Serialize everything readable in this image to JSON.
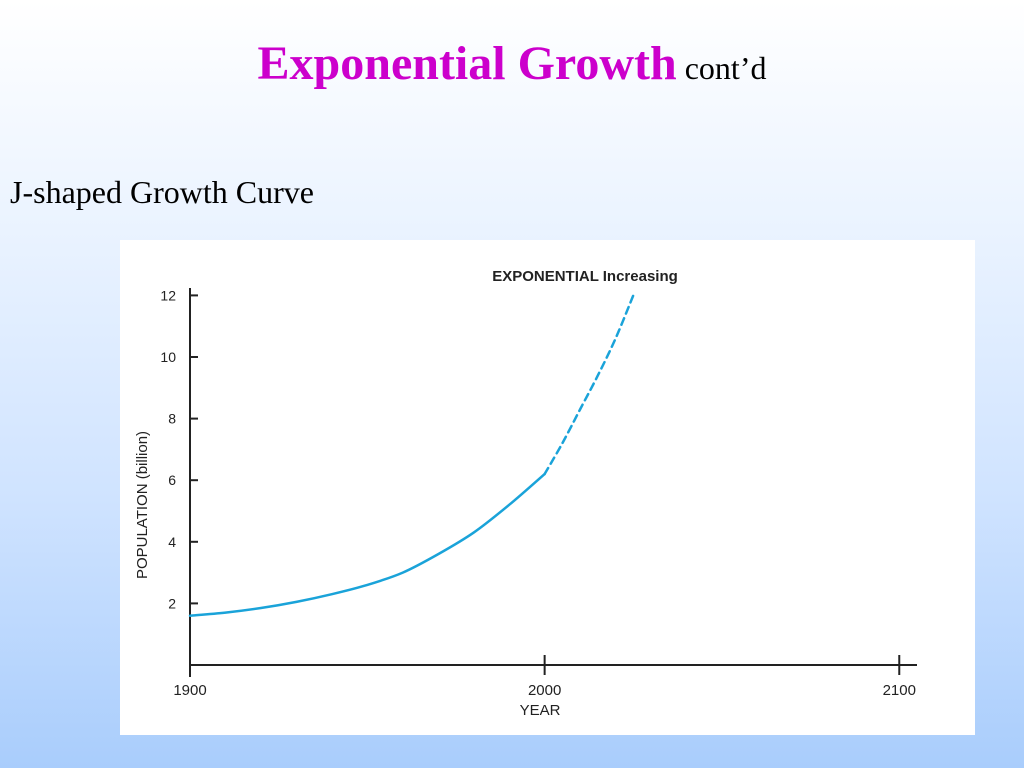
{
  "slide": {
    "title": "Exponential Growth",
    "title_suffix": "cont’d",
    "subtitle": "J-shaped Growth Curve"
  },
  "colors": {
    "title": "#cc00cc",
    "curve": "#1aa3d9",
    "axes": "#222222"
  },
  "chart_data": {
    "type": "line",
    "title": "EXPONENTIAL Increasing",
    "xlabel": "YEAR",
    "ylabel": "POPULATION (billion)",
    "xlim": [
      1900,
      2105
    ],
    "ylim": [
      0,
      12.5
    ],
    "x_ticks": [
      1900,
      2000,
      2100
    ],
    "y_ticks": [
      2,
      4,
      6,
      8,
      10,
      12
    ],
    "grid": false,
    "series": [
      {
        "style": "solid",
        "x": [
          1900,
          1910,
          1920,
          1930,
          1940,
          1950,
          1960,
          1970,
          1980,
          1990,
          2000
        ],
        "y": [
          1.6,
          1.7,
          1.85,
          2.05,
          2.3,
          2.6,
          3.0,
          3.6,
          4.3,
          5.2,
          6.2
        ]
      },
      {
        "style": "dashed",
        "x": [
          2000,
          2005,
          2010,
          2015,
          2020,
          2025
        ],
        "y": [
          6.2,
          7.2,
          8.3,
          9.4,
          10.6,
          12.0
        ]
      }
    ]
  }
}
